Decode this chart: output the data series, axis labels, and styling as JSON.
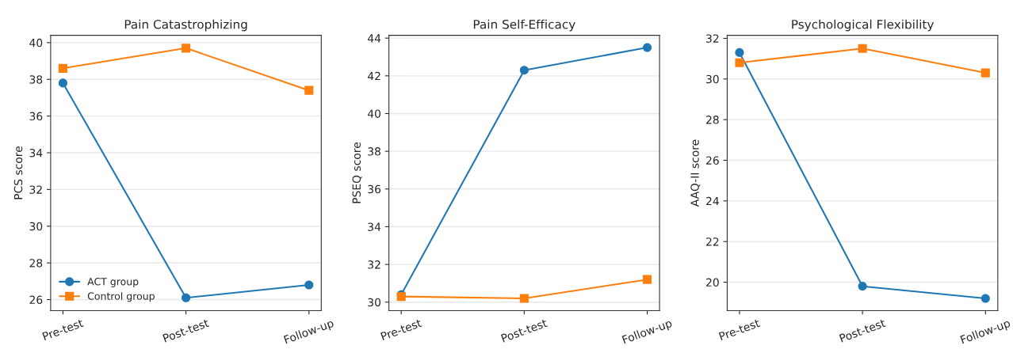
{
  "chart_data": [
    {
      "type": "line",
      "title": "Pain Catastrophizing",
      "ylabel": "PCS score",
      "categories": [
        "Pre-test",
        "Post-test",
        "Follow-up"
      ],
      "series": [
        {
          "name": "ACT group",
          "color": "#1f77b4",
          "marker": "circle",
          "values": [
            37.8,
            26.1,
            26.8
          ]
        },
        {
          "name": "Control group",
          "color": "#ff7f0e",
          "marker": "square",
          "values": [
            38.6,
            39.7,
            37.4
          ]
        }
      ],
      "ylim": [
        25.4,
        40.4
      ],
      "yticks": [
        26,
        28,
        30,
        32,
        34,
        36,
        38,
        40
      ],
      "grid": "y",
      "legend": "bottom left"
    },
    {
      "type": "line",
      "title": "Pain Self-Efficacy",
      "ylabel": "PSEQ score",
      "categories": [
        "Pre-test",
        "Post-test",
        "Follow-up"
      ],
      "series": [
        {
          "color": "#1f77b4",
          "marker": "circle",
          "values": [
            30.4,
            42.3,
            43.5
          ]
        },
        {
          "color": "#ff7f0e",
          "marker": "square",
          "values": [
            30.3,
            30.2,
            31.2
          ]
        }
      ],
      "ylim": [
        29.55,
        44.15
      ],
      "yticks": [
        30,
        32,
        34,
        36,
        38,
        40,
        42,
        44
      ],
      "grid": "y"
    },
    {
      "type": "line",
      "title": "Psychological Flexibility",
      "ylabel": "AAQ-II score",
      "categories": [
        "Pre-test",
        "Post-test",
        "Follow-up"
      ],
      "series": [
        {
          "color": "#1f77b4",
          "marker": "circle",
          "values": [
            31.3,
            19.8,
            19.2
          ]
        },
        {
          "color": "#ff7f0e",
          "marker": "square",
          "values": [
            30.8,
            31.5,
            30.3
          ]
        }
      ],
      "ylim": [
        18.6,
        32.15
      ],
      "yticks": [
        20,
        22,
        24,
        26,
        28,
        30,
        32
      ],
      "grid": "y"
    }
  ]
}
